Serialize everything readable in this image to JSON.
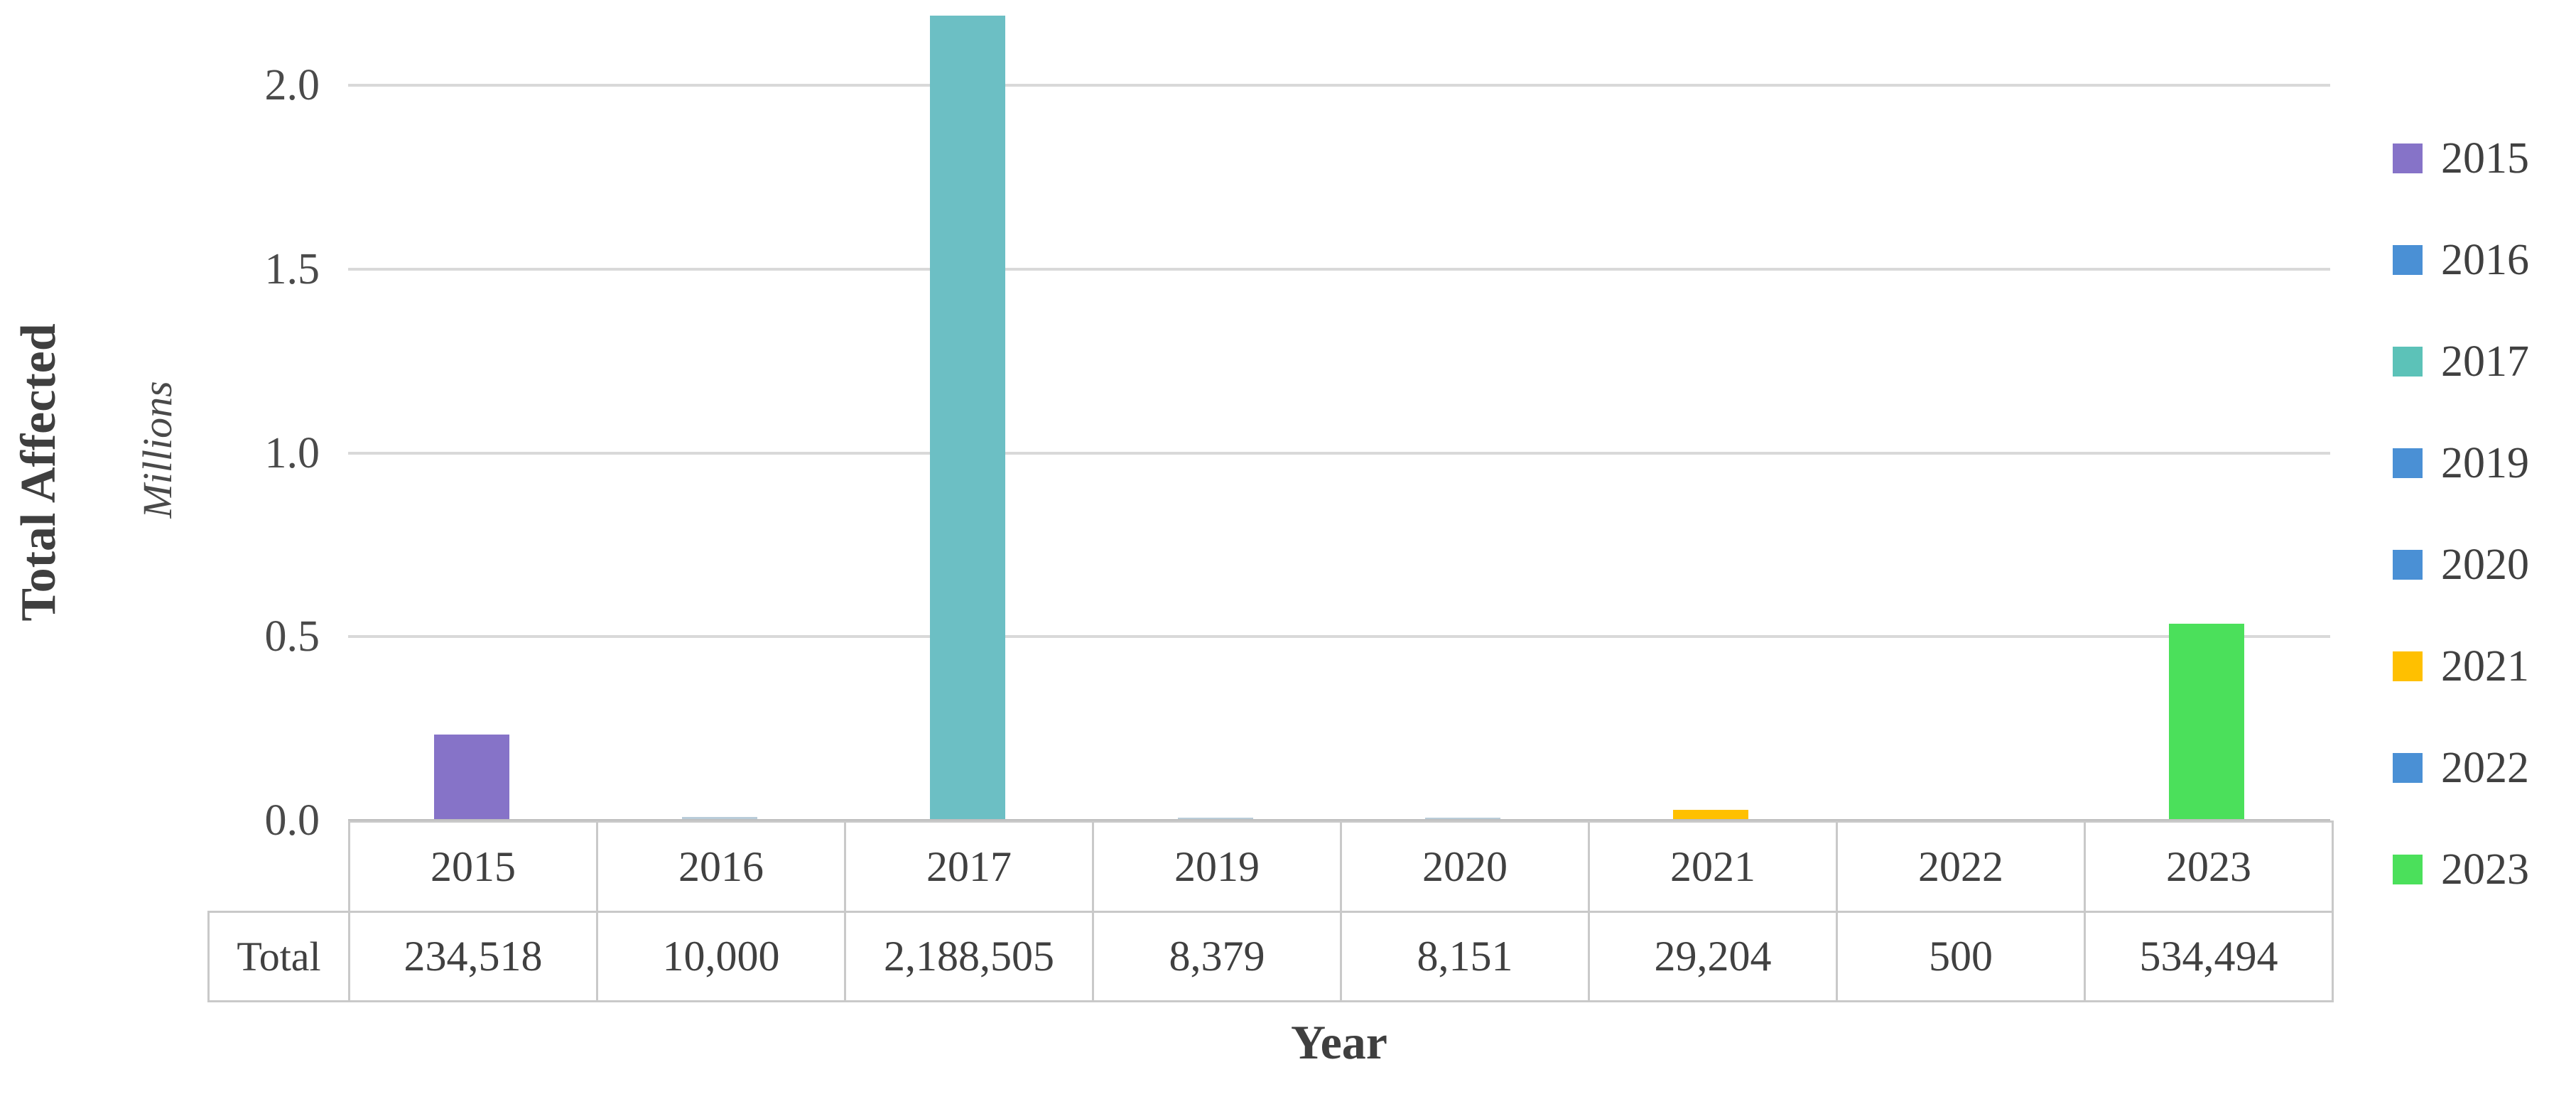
{
  "chart_data": {
    "type": "bar",
    "title": "",
    "ylabel": "Total Affected",
    "y_units_label": "Millions",
    "xlabel": "Year",
    "ylim": [
      0,
      2.0
    ],
    "ymax_millions": 2.0,
    "yticks": [
      "2.0",
      "1.5",
      "1.0",
      "0.5",
      "0.0"
    ],
    "grid": "horizontal",
    "legend_position": "right",
    "categories": [
      "2015",
      "2016",
      "2017",
      "2019",
      "2020",
      "2021",
      "2022",
      "2023"
    ],
    "values": [
      234518,
      10000,
      2188505,
      8379,
      8151,
      29204,
      500,
      534494
    ],
    "values_formatted": [
      "234,518",
      "10,000",
      "2,188,505",
      "8,379",
      "8,151",
      "29,204",
      "500",
      "534,494"
    ],
    "table_row_label": "Total",
    "bar_colors": [
      "#8673C8",
      "#B9CCD9",
      "#6CBFC4",
      "#B9CCD9",
      "#B9CCD9",
      "#FFC000",
      "#B9CCD9",
      "#4BE05B"
    ],
    "legend": [
      {
        "label": "2015",
        "color": "#8673C8"
      },
      {
        "label": "2016",
        "color": "#4A90D5"
      },
      {
        "label": "2017",
        "color": "#5CC2B8"
      },
      {
        "label": "2019",
        "color": "#4A90D5"
      },
      {
        "label": "2020",
        "color": "#4A90D5"
      },
      {
        "label": "2021",
        "color": "#FFC000"
      },
      {
        "label": "2022",
        "color": "#4A90D5"
      },
      {
        "label": "2023",
        "color": "#4BE05B"
      }
    ],
    "colors": {
      "gridline": "#D9D9D9",
      "axis_line": "#BFBFBF",
      "table_border": "#C9C9C9",
      "text": "#404040"
    }
  }
}
